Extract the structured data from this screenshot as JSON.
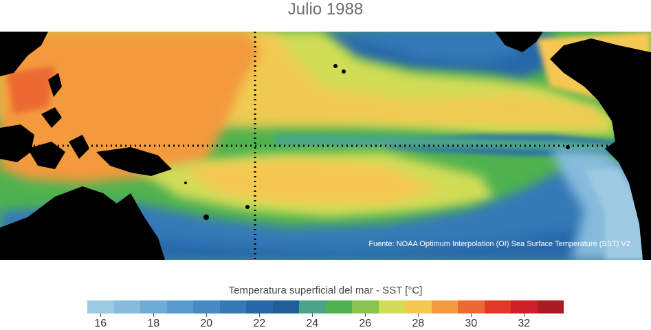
{
  "title": "Julio 1988",
  "source": "Fuente: NOAA Optimum Interpolation (OI) Sea Surface Temperature (SST) V2",
  "colorbar": {
    "title": "Temperatura superficial del mar - SST  [°C]",
    "colors": [
      "#9ecae1",
      "#86bbdc",
      "#6eabd6",
      "#5a9ccf",
      "#468bc4",
      "#3579b7",
      "#2567a8",
      "#1f5e96",
      "#4aa588",
      "#4fb24f",
      "#8ac44e",
      "#d2dd57",
      "#f6c852",
      "#f39a3c",
      "#ec6a32",
      "#de3a27",
      "#cc1f28",
      "#a61c22"
    ],
    "ticks": [
      "16",
      "18",
      "20",
      "22",
      "24",
      "26",
      "28",
      "30",
      "32"
    ]
  },
  "map_meta": {
    "vertical_line": "dotted meridian",
    "horizontal_line": "dotted equator"
  }
}
